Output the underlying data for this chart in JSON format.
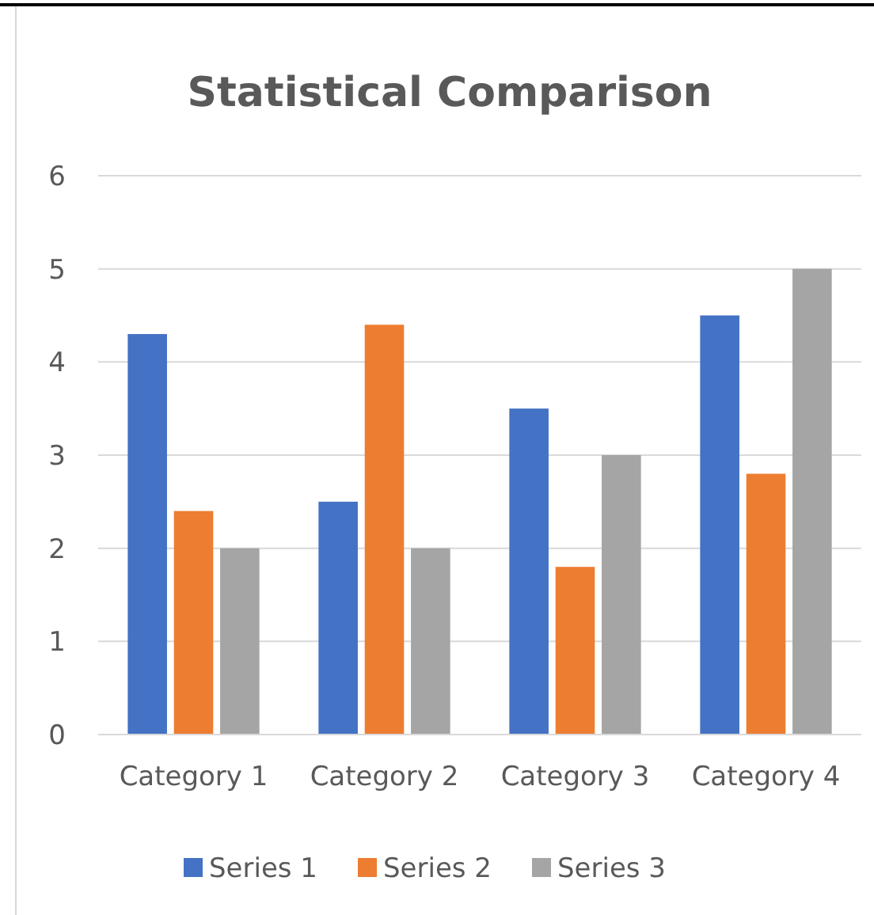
{
  "chart_data": {
    "type": "bar",
    "title": "Statistical Comparison",
    "categories": [
      "Category 1",
      "Category 2",
      "Category 3",
      "Category 4"
    ],
    "series": [
      {
        "name": "Series 1",
        "color": "#4472c4",
        "values": [
          4.3,
          2.5,
          3.5,
          4.5
        ]
      },
      {
        "name": "Series 2",
        "color": "#ed7d31",
        "values": [
          2.4,
          4.4,
          1.8,
          2.8
        ]
      },
      {
        "name": "Series 3",
        "color": "#a5a5a5",
        "values": [
          2,
          2,
          3,
          5
        ]
      }
    ],
    "ylim": [
      0,
      6
    ],
    "yticks": [
      0,
      1,
      2,
      3,
      4,
      5,
      6
    ],
    "grid": "y",
    "legend": "bottom"
  }
}
